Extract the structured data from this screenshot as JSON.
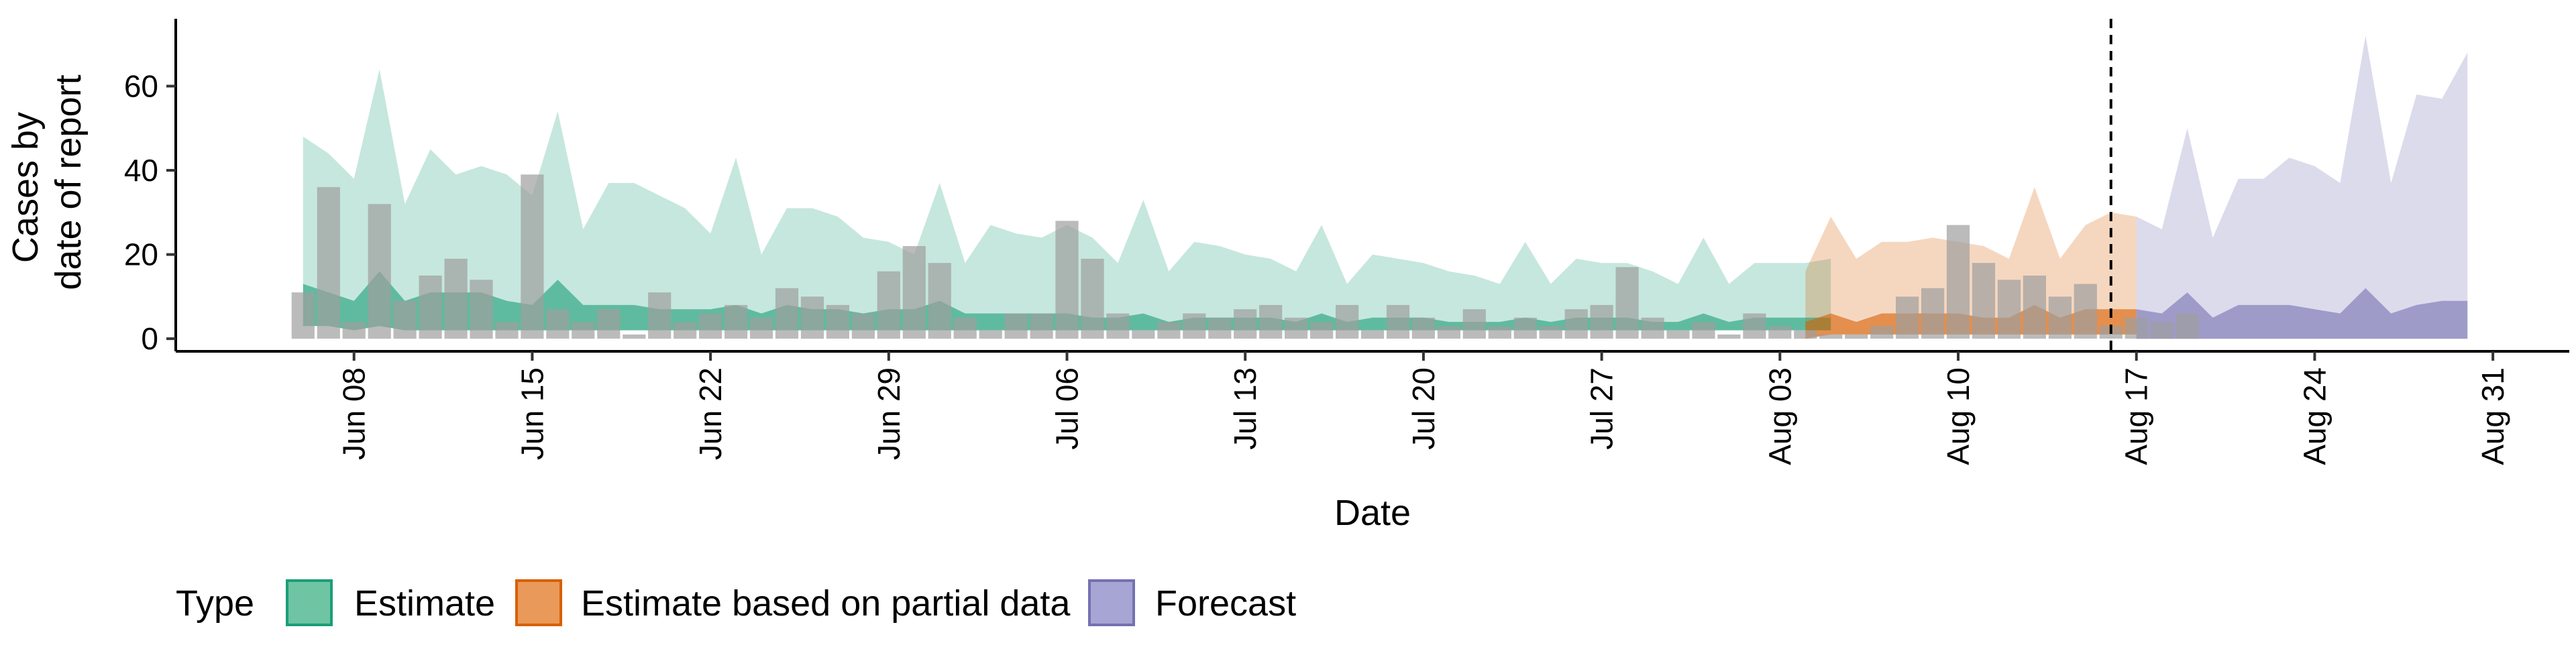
{
  "chart_data": {
    "type": "area",
    "xlabel": "Date",
    "ylabel_lines": [
      "Cases by",
      "date of report"
    ],
    "ylim": [
      -3,
      76
    ],
    "xlim": [
      "2020-06-01",
      "2020-09-03"
    ],
    "yticks": [
      0,
      20,
      40,
      60
    ],
    "xticks": [
      {
        "date": "2020-06-08",
        "label": "Jun 08"
      },
      {
        "date": "2020-06-15",
        "label": "Jun 15"
      },
      {
        "date": "2020-06-22",
        "label": "Jun 22"
      },
      {
        "date": "2020-06-29",
        "label": "Jun 29"
      },
      {
        "date": "2020-07-06",
        "label": "Jul 06"
      },
      {
        "date": "2020-07-13",
        "label": "Jul 13"
      },
      {
        "date": "2020-07-20",
        "label": "Jul 20"
      },
      {
        "date": "2020-07-27",
        "label": "Jul 27"
      },
      {
        "date": "2020-08-03",
        "label": "Aug 03"
      },
      {
        "date": "2020-08-10",
        "label": "Aug 10"
      },
      {
        "date": "2020-08-17",
        "label": "Aug 17"
      },
      {
        "date": "2020-08-24",
        "label": "Aug 24"
      },
      {
        "date": "2020-08-31",
        "label": "Aug 31"
      }
    ],
    "forecast_date": "2020-08-16",
    "grid": false,
    "legend": {
      "title": "Type",
      "position": "bottom",
      "entries": [
        {
          "label": "Estimate",
          "fill": "#6fc4a4",
          "border": "#1b9e77"
        },
        {
          "label": "Estimate based on partial data",
          "fill": "#e9995a",
          "border": "#d95f02"
        },
        {
          "label": "Forecast",
          "fill": "#a7a5d3",
          "border": "#7570b3"
        }
      ]
    },
    "colors": {
      "Estimate": "#1b9e77",
      "Estimate based on partial data": "#d95f02",
      "Forecast": "#7570b3",
      "reported": "#9e9e9e"
    },
    "reported_cases": {
      "start": "2020-06-06",
      "values": [
        11,
        36,
        4,
        32,
        9,
        15,
        19,
        14,
        4,
        39,
        7,
        4,
        7,
        1,
        11,
        4,
        6,
        8,
        5,
        12,
        10,
        8,
        6,
        16,
        22,
        18,
        5,
        2,
        6,
        6,
        28,
        19,
        6,
        2,
        4,
        6,
        5,
        7,
        8,
        5,
        4,
        8,
        2,
        8,
        5,
        3,
        7,
        3,
        5,
        3,
        7,
        8,
        17,
        5,
        2,
        4,
        1,
        6,
        3,
        2,
        1,
        1,
        3,
        10,
        12,
        27,
        18,
        14,
        15,
        10,
        13,
        3,
        5,
        4,
        6
      ]
    },
    "series": [
      {
        "name": "Estimate",
        "start": "2020-06-06",
        "upper": [
          48,
          44,
          38,
          64,
          32,
          45,
          39,
          41,
          39,
          34,
          54,
          26,
          37,
          37,
          34,
          31,
          25,
          43,
          20,
          31,
          31,
          29,
          24,
          23,
          20,
          37,
          18,
          27,
          25,
          24,
          27,
          24,
          18,
          33,
          16,
          23,
          22,
          20,
          19,
          16,
          27,
          13,
          20,
          19,
          18,
          16,
          15,
          13,
          23,
          13,
          19,
          18,
          18,
          16,
          13,
          24,
          13,
          18,
          18,
          18,
          19
        ],
        "lower": [
          3,
          3,
          2,
          3,
          2,
          2,
          2,
          2,
          2,
          2,
          2,
          2,
          2,
          2,
          2,
          2,
          2,
          2,
          2,
          2,
          2,
          2,
          2,
          2,
          2,
          2,
          2,
          2,
          2,
          2,
          2,
          2,
          2,
          2,
          2,
          2,
          2,
          2,
          2,
          2,
          2,
          2,
          2,
          2,
          2,
          2,
          2,
          2,
          2,
          2,
          2,
          2,
          2,
          2,
          2,
          2,
          2,
          2,
          2,
          2,
          2
        ],
        "median": [
          13,
          11,
          9,
          16,
          9,
          11,
          11,
          11,
          9,
          8,
          14,
          8,
          8,
          8,
          7,
          7,
          7,
          8,
          6,
          8,
          7,
          7,
          6,
          7,
          7,
          9,
          6,
          6,
          6,
          6,
          6,
          5,
          5,
          6,
          4,
          5,
          5,
          5,
          5,
          4,
          6,
          4,
          5,
          5,
          5,
          4,
          4,
          4,
          5,
          4,
          5,
          5,
          5,
          4,
          4,
          6,
          4,
          5,
          5,
          5,
          5
        ]
      },
      {
        "name": "Estimate based on partial data",
        "start": "2020-08-04",
        "upper": [
          16,
          29,
          19,
          23,
          23,
          24,
          23,
          22,
          19,
          36,
          19,
          27,
          30,
          29
        ],
        "lower": [
          0,
          1,
          1,
          1,
          1,
          1,
          1,
          1,
          1,
          1,
          1,
          1,
          1,
          1
        ],
        "median": [
          4,
          6,
          4,
          6,
          6,
          6,
          6,
          5,
          5,
          8,
          5,
          7,
          7,
          7
        ]
      },
      {
        "name": "Forecast",
        "start": "2020-08-17",
        "upper": [
          29,
          26,
          50,
          24,
          38,
          38,
          43,
          41,
          37,
          72,
          37,
          58,
          57,
          68
        ],
        "lower": [
          0,
          0,
          0,
          0,
          0,
          0,
          0,
          0,
          0,
          0,
          0,
          0,
          0,
          0
        ],
        "median": [
          7,
          6,
          11,
          5,
          8,
          8,
          8,
          7,
          6,
          12,
          6,
          8,
          9,
          9
        ]
      }
    ]
  }
}
